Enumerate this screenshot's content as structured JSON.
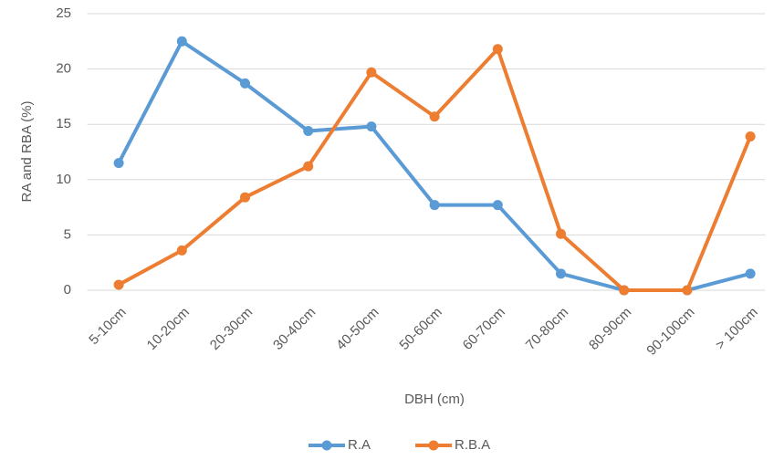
{
  "chart_data": {
    "type": "line",
    "x_label": "DBH (cm)",
    "y_label": "RA and RBA (%)",
    "categories": [
      "5-10cm",
      "10-20cm",
      "20-30cm",
      "30-40cm",
      "40-50cm",
      "50-60cm",
      "60-70cm",
      "70-80cm",
      "80-90cm",
      "90-100cm",
      "> 100cm"
    ],
    "series": [
      {
        "name": "R.A",
        "color": "#5b9bd5",
        "values": [
          11.5,
          22.5,
          18.7,
          14.4,
          14.8,
          7.7,
          7.7,
          1.5,
          0,
          0,
          1.5
        ]
      },
      {
        "name": "R.B.A",
        "color": "#ed7d31",
        "values": [
          0.5,
          3.6,
          8.4,
          11.2,
          19.7,
          15.7,
          21.8,
          5.1,
          0,
          0,
          13.9
        ]
      }
    ],
    "ylim": [
      0,
      25
    ],
    "yticks": [
      0,
      5,
      10,
      15,
      20,
      25
    ],
    "grid": true,
    "legend": "bottom"
  }
}
